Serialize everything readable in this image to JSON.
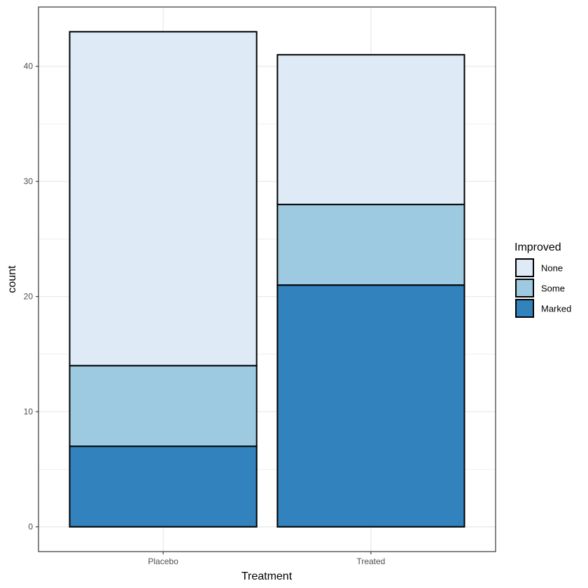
{
  "chart_data": {
    "type": "bar",
    "stacked": true,
    "categories": [
      "Placebo",
      "Treated"
    ],
    "series": [
      {
        "name": "Marked",
        "values": [
          7,
          21
        ],
        "color": "#3182bd"
      },
      {
        "name": "Some",
        "values": [
          7,
          7
        ],
        "color": "#9ecae1"
      },
      {
        "name": "None",
        "values": [
          29,
          13
        ],
        "color": "#deebf7"
      }
    ],
    "xlabel": "Treatment",
    "ylabel": "count",
    "ylim": [
      -2.15,
      45.15
    ],
    "yticks": [
      0,
      10,
      20,
      30,
      40
    ],
    "grid": true,
    "legend": {
      "title": "Improved",
      "position": "right",
      "entries": [
        "None",
        "Some",
        "Marked"
      ]
    }
  }
}
